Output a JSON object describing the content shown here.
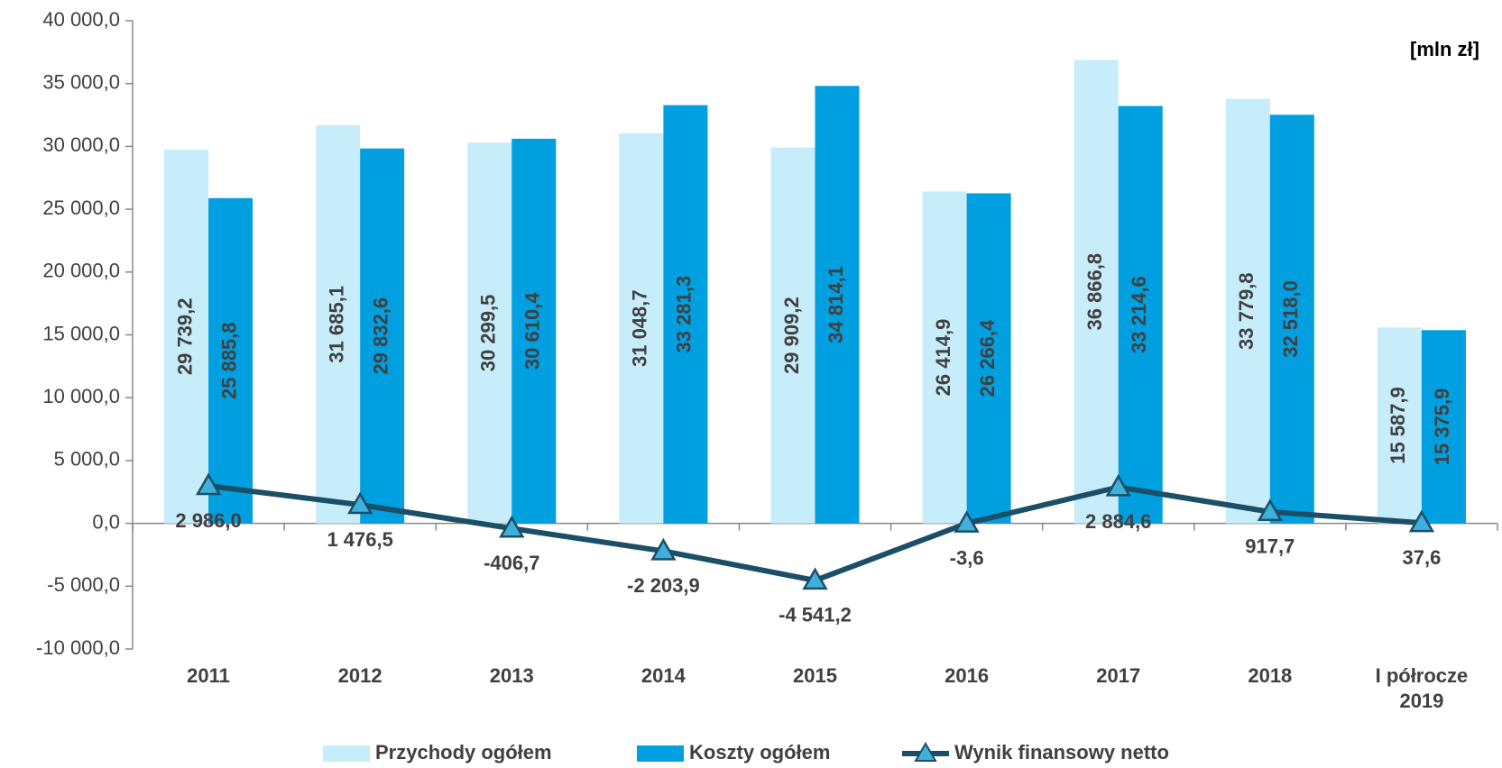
{
  "chart_data": {
    "type": "bar",
    "annotation": "[mln zł]",
    "categories": [
      "2011",
      "2012",
      "2013",
      "2014",
      "2015",
      "2016",
      "2017",
      "2018",
      "I półrocze 2019"
    ],
    "series": [
      {
        "name": "Przychody ogółem",
        "color": "#c7ecfa",
        "type": "bar",
        "values": [
          29739.2,
          31685.1,
          30299.5,
          31048.7,
          29909.2,
          26414.9,
          36866.8,
          33779.8,
          15587.9
        ],
        "value_labels": [
          "29 739,2",
          "31 685,1",
          "30 299,5",
          "31 048,7",
          "29 909,2",
          "26 414,9",
          "36 866,8",
          "33 779,8",
          "15 587,9"
        ]
      },
      {
        "name": "Koszty ogółem",
        "color": "#009fe0",
        "type": "bar",
        "values": [
          25885.8,
          29832.6,
          30610.4,
          33281.3,
          34814.1,
          26266.4,
          33214.6,
          32518.0,
          15375.9
        ],
        "value_labels": [
          "25 885,8",
          "29 832,6",
          "30 610,4",
          "33 281,3",
          "34 814,1",
          "26 266,4",
          "33 214,6",
          "32 518,0",
          "15 375,9"
        ]
      },
      {
        "name": "Wynik finansowy netto",
        "color": "#1b4f68",
        "marker_color": "#3fb0dc",
        "type": "line",
        "values": [
          2986.0,
          1476.5,
          -406.7,
          -2203.9,
          -4541.2,
          -3.6,
          2884.6,
          917.7,
          37.6
        ],
        "value_labels": [
          "2 986,0",
          "1 476,5",
          "-406,7",
          "-2 203,9",
          "-4 541,2",
          "-3,6",
          "2 884,6",
          "917,7",
          "37,6"
        ]
      }
    ],
    "ylim": [
      -10000,
      40000
    ],
    "yticks": [
      {
        "value": -10000,
        "label": "-10 000,0"
      },
      {
        "value": -5000,
        "label": "-5 000,0"
      },
      {
        "value": 0,
        "label": "0,0"
      },
      {
        "value": 5000,
        "label": "5 000,0"
      },
      {
        "value": 10000,
        "label": "10 000,0"
      },
      {
        "value": 15000,
        "label": "15 000,0"
      },
      {
        "value": 20000,
        "label": "20 000,0"
      },
      {
        "value": 25000,
        "label": "25 000,0"
      },
      {
        "value": 30000,
        "label": "30 000,0"
      },
      {
        "value": 35000,
        "label": "35 000,0"
      },
      {
        "value": 40000,
        "label": "40 000,0"
      }
    ],
    "grid": false,
    "legend": "bottom"
  }
}
